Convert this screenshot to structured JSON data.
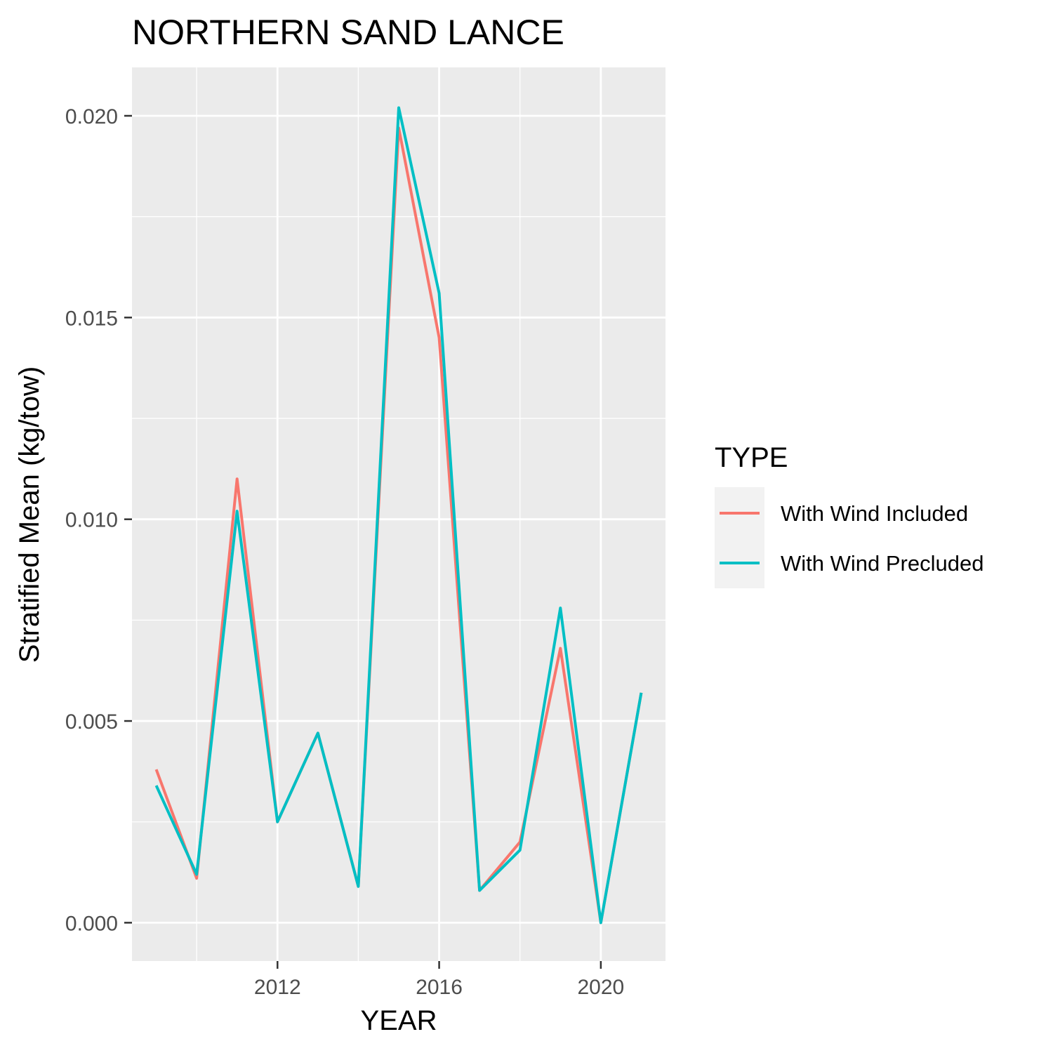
{
  "chart_data": {
    "type": "line",
    "title": "NORTHERN SAND LANCE",
    "xlabel": "YEAR",
    "ylabel": "Stratified Mean (kg/tow)",
    "x": [
      2009,
      2010,
      2011,
      2012,
      2013,
      2014,
      2015,
      2016,
      2017,
      2018,
      2019,
      2020,
      2021
    ],
    "xlim": [
      2008.4,
      2021.6
    ],
    "ylim": [
      -0.00095,
      0.0212
    ],
    "x_ticks": [
      2012,
      2016,
      2020
    ],
    "x_tick_labels": [
      "2012",
      "2016",
      "2020"
    ],
    "x_minor_ticks": [
      2010,
      2014,
      2018
    ],
    "y_ticks": [
      0.0,
      0.005,
      0.01,
      0.015,
      0.02
    ],
    "y_tick_labels": [
      "0.000",
      "0.005",
      "0.010",
      "0.015",
      "0.020"
    ],
    "y_minor_ticks": [
      0.0025,
      0.0075,
      0.0125,
      0.0175
    ],
    "grid": true,
    "legend_placement": "right",
    "legend_title": "TYPE",
    "series": [
      {
        "name": "With Wind Included",
        "color": "#F8766D",
        "values": [
          0.0038,
          0.0011,
          0.011,
          0.0025,
          0.0047,
          0.0009,
          0.0197,
          0.0145,
          0.0008,
          0.002,
          0.0068,
          0.0,
          0.0057
        ]
      },
      {
        "name": "With Wind Precluded",
        "color": "#00BFC4",
        "values": [
          0.0034,
          0.0012,
          0.0102,
          0.0025,
          0.0047,
          0.0009,
          0.0202,
          0.0156,
          0.0008,
          0.0018,
          0.0078,
          0.0,
          0.0057
        ]
      }
    ],
    "colors": {
      "panel_background": "#EBEBEB",
      "grid_line": "#FFFFFF",
      "legend_key_background": "#F2F2F2",
      "tick_color": "#333333"
    }
  }
}
